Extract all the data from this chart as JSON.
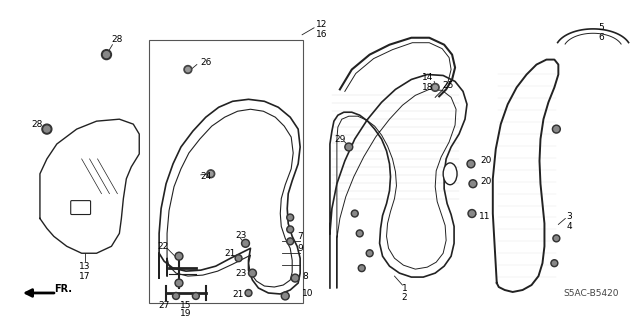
{
  "bg_color": "#ffffff",
  "line_color": "#222222",
  "text_color": "#000000",
  "fig_width": 6.4,
  "fig_height": 3.19,
  "dpi": 100,
  "diagram_code": "S5AC-B5420",
  "fr_arrow_text": "FR."
}
